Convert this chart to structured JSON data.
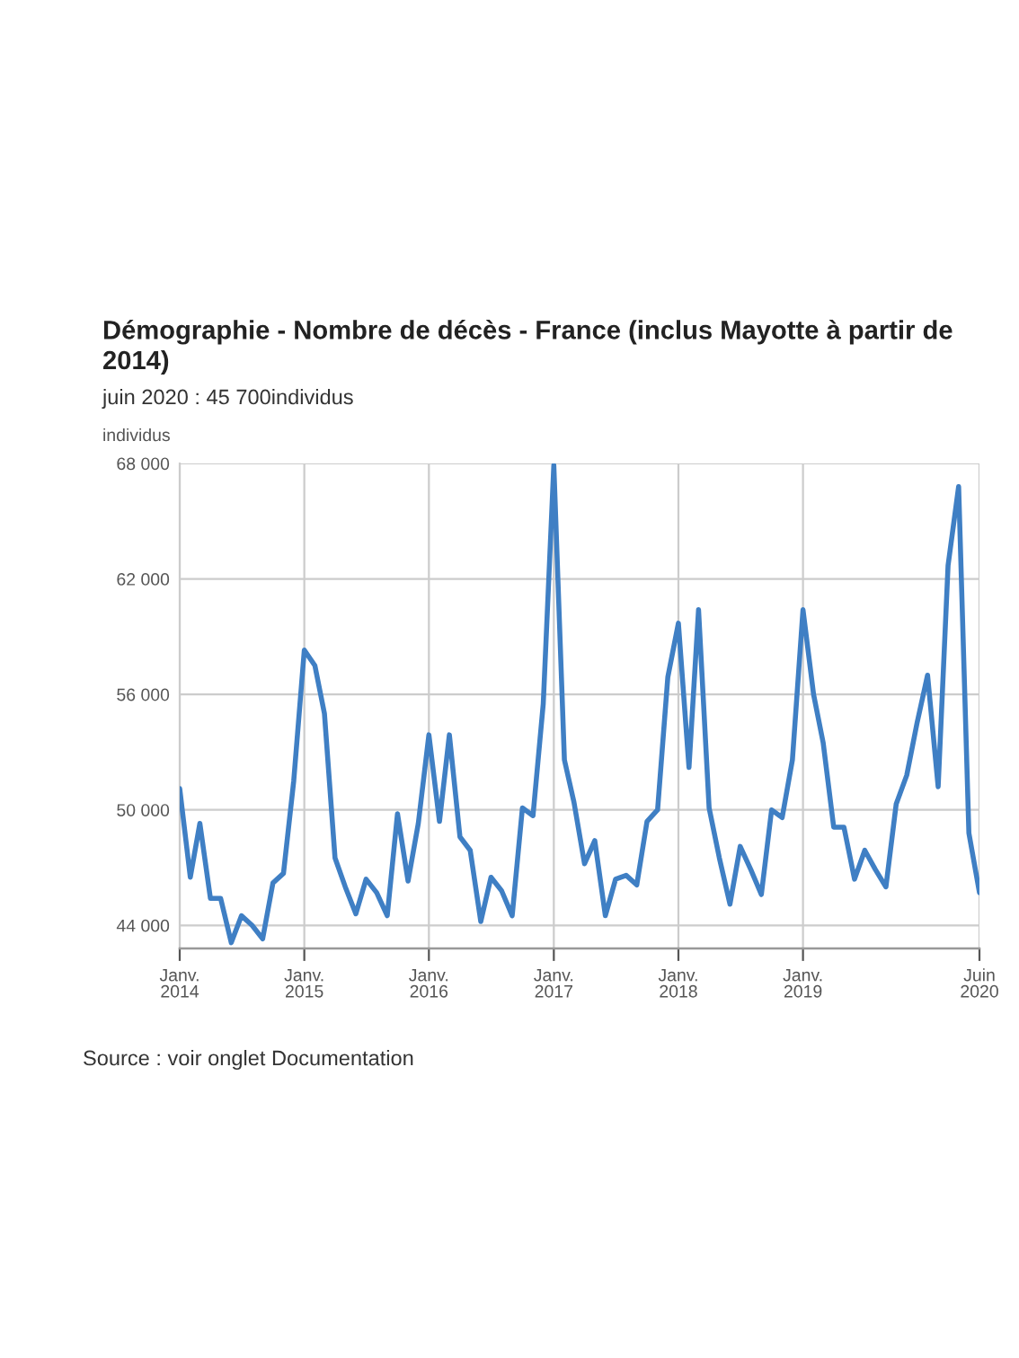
{
  "chart_data": {
    "type": "line",
    "title": "Démographie - Nombre de décès - France (inclus Mayotte à partir de 2014)",
    "subtitle": "juin 2020 : 45 700individus",
    "ylabel": "individus",
    "annotations": [
      "Source : voir onglet Documentation"
    ],
    "x": [
      "2014-01",
      "2014-02",
      "2014-03",
      "2014-04",
      "2014-05",
      "2014-06",
      "2014-07",
      "2014-08",
      "2014-09",
      "2014-10",
      "2014-11",
      "2014-12",
      "2015-01",
      "2015-02",
      "2015-03",
      "2015-04",
      "2015-05",
      "2015-06",
      "2015-07",
      "2015-08",
      "2015-09",
      "2015-10",
      "2015-11",
      "2015-12",
      "2016-01",
      "2016-02",
      "2016-03",
      "2016-04",
      "2016-05",
      "2016-06",
      "2016-07",
      "2016-08",
      "2016-09",
      "2016-10",
      "2016-11",
      "2016-12",
      "2017-01",
      "2017-02",
      "2017-03",
      "2017-04",
      "2017-05",
      "2017-06",
      "2017-07",
      "2017-08",
      "2017-09",
      "2017-10",
      "2017-11",
      "2017-12",
      "2018-01",
      "2018-02",
      "2018-03",
      "2018-04",
      "2018-05",
      "2018-06",
      "2018-07",
      "2018-08",
      "2018-09",
      "2018-10",
      "2018-11",
      "2018-12",
      "2019-01",
      "2019-02",
      "2019-03",
      "2019-04",
      "2019-05",
      "2019-06",
      "2019-07",
      "2019-08",
      "2019-09",
      "2019-10",
      "2019-11",
      "2019-12",
      "2020-01",
      "2020-02",
      "2020-03",
      "2020-04",
      "2020-05",
      "2020-06"
    ],
    "series": [
      {
        "color": "#3f7fc4",
        "values": [
          51100,
          46500,
          49300,
          45400,
          45400,
          43100,
          44500,
          44000,
          43300,
          46200,
          46700,
          51500,
          58300,
          57500,
          55000,
          47500,
          46000,
          44600,
          46400,
          45700,
          44500,
          49800,
          46300,
          49300,
          53900,
          49400,
          53900,
          48600,
          47900,
          44200,
          46500,
          45800,
          44500,
          50100,
          49700,
          55500,
          67900,
          52600,
          50400,
          47200,
          48400,
          44500,
          46400,
          46600,
          46100,
          49400,
          50000,
          56900,
          59700,
          52200,
          60400,
          50100,
          47500,
          45100,
          48100,
          46900,
          45600,
          50000,
          49600,
          52600,
          60400,
          56000,
          53500,
          49100,
          49100,
          46400,
          47900,
          46900,
          46000,
          50300,
          51800,
          54500,
          57000,
          51200,
          62700,
          66800,
          48800,
          45700
        ]
      }
    ],
    "xlim": [
      "2014-01",
      "2020-06"
    ],
    "xticks": [
      {
        "value": "2014-01",
        "label": "Janv.\n2014"
      },
      {
        "value": "2015-01",
        "label": "Janv.\n2015"
      },
      {
        "value": "2016-01",
        "label": "Janv.\n2016"
      },
      {
        "value": "2017-01",
        "label": "Janv.\n2017"
      },
      {
        "value": "2018-01",
        "label": "Janv.\n2018"
      },
      {
        "value": "2019-01",
        "label": "Janv.\n2019"
      },
      {
        "value": "2020-06",
        "label": "Juin\n2020"
      }
    ],
    "ylim": [
      42800,
      68000
    ],
    "yticks": [
      {
        "value": 44000,
        "label": "44 000"
      },
      {
        "value": 50000,
        "label": "50 000"
      },
      {
        "value": 56000,
        "label": "56 000"
      },
      {
        "value": 62000,
        "label": "62 000"
      },
      {
        "value": 68000,
        "label": "68 000"
      }
    ],
    "grid": true
  }
}
